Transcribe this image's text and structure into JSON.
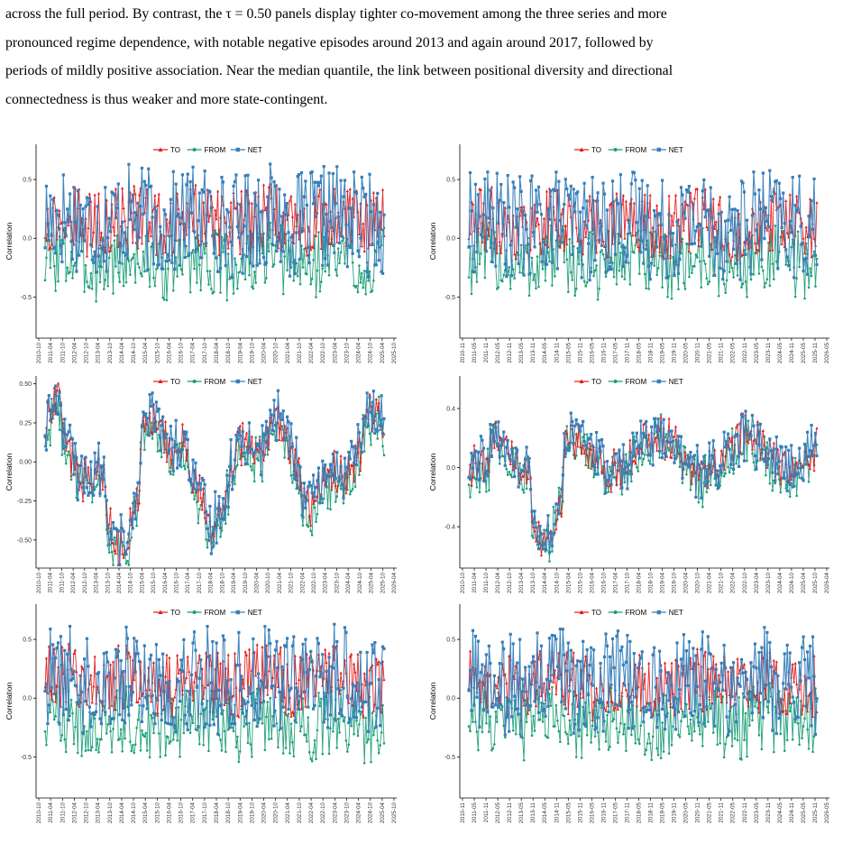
{
  "paragraph": {
    "lines": [
      "across the full period. By contrast, the τ = 0.50 panels display tighter co-movement among the three series and more",
      "pronounced regime dependence, with notable negative episodes around 2013 and again around 2017, followed by",
      "periods of mildly positive association. Near the median quantile, the link between positional diversity and directional",
      "connectedness is thus weaker and more state-contingent."
    ]
  },
  "legend": {
    "items": [
      {
        "label": "TO",
        "color": "#e41a1c",
        "marker": "triangle"
      },
      {
        "label": "FROM",
        "color": "#1b9e77",
        "marker": "circle"
      },
      {
        "label": "NET",
        "color": "#377eb8",
        "marker": "square"
      }
    ]
  },
  "colors": {
    "TO": "#e41a1c",
    "FROM": "#1b9e77",
    "NET": "#377eb8"
  },
  "chart_data": [
    {
      "type": "line",
      "panel": "row1-left",
      "ylabel": "Correlation",
      "y_ticks": [
        "0.5",
        "0.0",
        "-0.5"
      ],
      "ylim": [
        -0.85,
        0.8
      ],
      "x_ticks": [
        "2010-10",
        "2011-04",
        "2011-10",
        "2012-04",
        "2012-10",
        "2013-04",
        "2013-10",
        "2014-04",
        "2014-10",
        "2015-04",
        "2015-10",
        "2016-04",
        "2016-10",
        "2017-04",
        "2017-10",
        "2018-04",
        "2018-10",
        "2019-04",
        "2019-10",
        "2020-04",
        "2020-10",
        "2021-04",
        "2021-10",
        "2022-04",
        "2022-10",
        "2023-04",
        "2023-10",
        "2024-04",
        "2024-10",
        "2025-04",
        "2025-10"
      ],
      "series": [
        {
          "name": "TO",
          "pattern": "noisy",
          "level": 0.15,
          "amp": 0.28
        },
        {
          "name": "FROM",
          "pattern": "noisy",
          "level": -0.2,
          "amp": 0.3
        },
        {
          "name": "NET",
          "pattern": "noisy",
          "level": 0.15,
          "amp": 0.45
        }
      ]
    },
    {
      "type": "line",
      "panel": "row1-right",
      "ylabel": "Correlation",
      "y_ticks": [
        "0.5",
        "0.0",
        "-0.5"
      ],
      "ylim": [
        -0.85,
        0.8
      ],
      "x_ticks": [
        "2010-11",
        "2011-05",
        "2011-11",
        "2012-05",
        "2012-11",
        "2013-05",
        "2013-11",
        "2014-05",
        "2014-11",
        "2015-05",
        "2015-11",
        "2016-05",
        "2016-11",
        "2017-05",
        "2017-11",
        "2018-05",
        "2018-11",
        "2019-05",
        "2019-11",
        "2020-05",
        "2020-11",
        "2021-05",
        "2021-11",
        "2022-05",
        "2022-11",
        "2023-05",
        "2023-11",
        "2024-05",
        "2024-11",
        "2025-05",
        "2025-11",
        "2026-05"
      ],
      "series": [
        {
          "name": "TO",
          "pattern": "noisy",
          "level": 0.12,
          "amp": 0.28
        },
        {
          "name": "FROM",
          "pattern": "noisy",
          "level": -0.2,
          "amp": 0.3
        },
        {
          "name": "NET",
          "pattern": "noisy",
          "level": 0.12,
          "amp": 0.45
        }
      ]
    },
    {
      "type": "line",
      "panel": "row2-left",
      "ylabel": "Correlation",
      "y_ticks": [
        "0.50",
        "0.25",
        "0.00",
        "-0.25",
        "-0.50"
      ],
      "ylim": [
        -0.68,
        0.55
      ],
      "x_ticks": [
        "2010-10",
        "2011-04",
        "2011-10",
        "2012-04",
        "2012-10",
        "2013-04",
        "2013-10",
        "2014-04",
        "2014-10",
        "2015-04",
        "2015-10",
        "2016-04",
        "2016-10",
        "2017-04",
        "2017-10",
        "2018-04",
        "2018-10",
        "2019-04",
        "2019-10",
        "2020-04",
        "2020-10",
        "2021-04",
        "2021-10",
        "2022-04",
        "2022-10",
        "2023-04",
        "2023-10",
        "2024-04",
        "2024-10",
        "2025-04",
        "2025-10",
        "2026-04"
      ],
      "series": [
        {
          "name": "TO",
          "pattern": "regime",
          "level": 0.0,
          "amp": 0.12
        },
        {
          "name": "FROM",
          "pattern": "regime",
          "level": -0.05,
          "amp": 0.14
        },
        {
          "name": "NET",
          "pattern": "regime",
          "level": 0.02,
          "amp": 0.15
        }
      ]
    },
    {
      "type": "line",
      "panel": "row2-right",
      "ylabel": "Correlation",
      "y_ticks": [
        "0.4",
        "0.0",
        "-0.4"
      ],
      "ylim": [
        -0.68,
        0.62
      ],
      "x_ticks": [
        "2010-10",
        "2011-04",
        "2011-10",
        "2012-04",
        "2012-10",
        "2013-04",
        "2013-10",
        "2014-04",
        "2014-10",
        "2015-04",
        "2015-10",
        "2016-04",
        "2016-10",
        "2017-04",
        "2017-10",
        "2018-04",
        "2018-10",
        "2019-04",
        "2019-10",
        "2020-04",
        "2020-10",
        "2021-04",
        "2021-10",
        "2022-04",
        "2022-10",
        "2023-04",
        "2023-10",
        "2024-04",
        "2024-10",
        "2025-04",
        "2025-10",
        "2026-04"
      ],
      "series": [
        {
          "name": "TO",
          "pattern": "regime2",
          "level": 0.1,
          "amp": 0.12
        },
        {
          "name": "FROM",
          "pattern": "regime2",
          "level": 0.05,
          "amp": 0.14
        },
        {
          "name": "NET",
          "pattern": "regime2",
          "level": 0.1,
          "amp": 0.15
        }
      ]
    },
    {
      "type": "line",
      "panel": "row3-left",
      "ylabel": "Correlation",
      "y_ticks": [
        "0.5",
        "0.0",
        "-0.5"
      ],
      "ylim": [
        -0.85,
        0.8
      ],
      "x_ticks": [
        "2010-10",
        "2011-04",
        "2011-10",
        "2012-04",
        "2012-10",
        "2013-04",
        "2013-10",
        "2014-04",
        "2014-10",
        "2015-04",
        "2015-10",
        "2016-04",
        "2016-10",
        "2017-04",
        "2017-10",
        "2018-04",
        "2018-10",
        "2019-04",
        "2019-10",
        "2020-04",
        "2020-10",
        "2021-04",
        "2021-10",
        "2022-04",
        "2022-10",
        "2023-04",
        "2023-10",
        "2024-04",
        "2024-10",
        "2025-04",
        "2025-10"
      ],
      "series": [
        {
          "name": "TO",
          "pattern": "noisy",
          "level": 0.15,
          "amp": 0.28
        },
        {
          "name": "FROM",
          "pattern": "noisy",
          "level": -0.22,
          "amp": 0.3
        },
        {
          "name": "NET",
          "pattern": "noisy",
          "level": 0.15,
          "amp": 0.45
        }
      ]
    },
    {
      "type": "line",
      "panel": "row3-right",
      "ylabel": "Correlation",
      "y_ticks": [
        "0.5",
        "0.0",
        "-0.5"
      ],
      "ylim": [
        -0.85,
        0.8
      ],
      "x_ticks": [
        "2010-11",
        "2011-05",
        "2011-11",
        "2012-05",
        "2012-11",
        "2013-05",
        "2013-11",
        "2014-05",
        "2014-11",
        "2015-05",
        "2015-11",
        "2016-05",
        "2016-11",
        "2017-05",
        "2017-11",
        "2018-05",
        "2018-11",
        "2019-05",
        "2019-11",
        "2020-05",
        "2020-11",
        "2021-05",
        "2021-11",
        "2022-05",
        "2022-11",
        "2023-05",
        "2023-11",
        "2024-05",
        "2024-11",
        "2025-05",
        "2025-11",
        "2026-05"
      ],
      "series": [
        {
          "name": "TO",
          "pattern": "noisy",
          "level": 0.12,
          "amp": 0.28
        },
        {
          "name": "FROM",
          "pattern": "noisy",
          "level": -0.2,
          "amp": 0.3
        },
        {
          "name": "NET",
          "pattern": "noisy",
          "level": 0.12,
          "amp": 0.45
        }
      ]
    }
  ]
}
